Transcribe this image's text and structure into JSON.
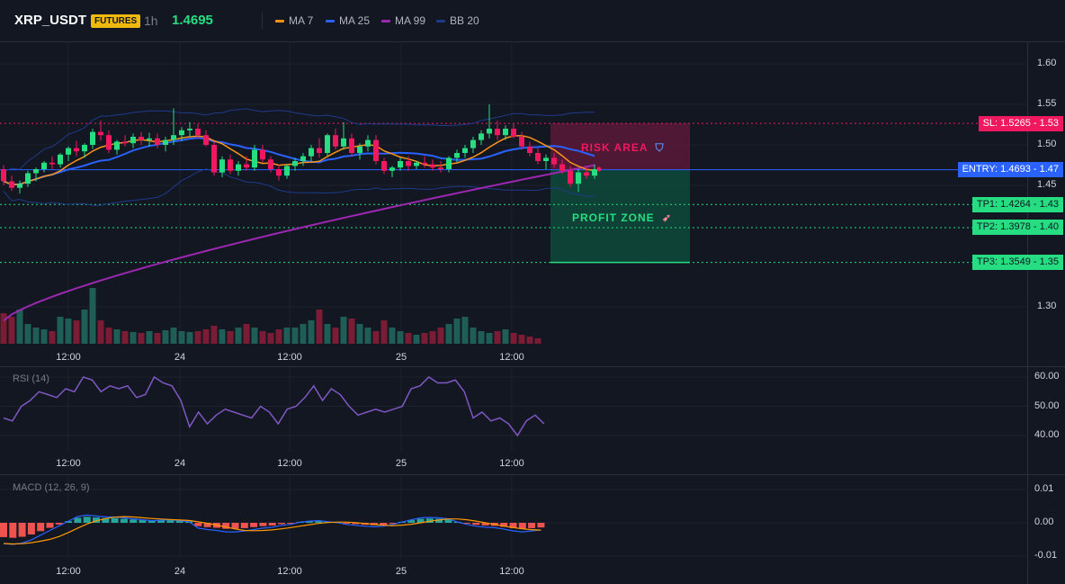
{
  "header": {
    "symbol": "XRP_USDT",
    "badge": "FUTURES",
    "interval": "1h",
    "price": "1.4695",
    "legend": [
      {
        "label": "MA 7",
        "color": "#f7931a"
      },
      {
        "label": "MA 25",
        "color": "#2962ff"
      },
      {
        "label": "MA 99",
        "color": "#9c27b0"
      },
      {
        "label": "BB 20",
        "color": "#1e3a8a"
      }
    ]
  },
  "colors": {
    "up": "#26de81",
    "down": "#f0185f",
    "vol_up": "#1f5e57",
    "vol_down": "#7a1c34",
    "macd_up": "#26a69a",
    "macd_down": "#ef5350",
    "macd_line": "#2962ff",
    "signal_line": "#ff9800",
    "rsi_line": "#7e57c2",
    "entry": "#2962ff",
    "sl": "#f0185f",
    "tp": "#26de81"
  },
  "zones": {
    "risk_label": "RISK AREA",
    "profit_label": "PROFIT ZONE"
  },
  "panes": {
    "rsi_title": "RSI (14)",
    "macd_title": "MACD (12, 26, 9)"
  },
  "chart_data": {
    "type": "candlestick",
    "price_axis_ticks": [
      "1.60",
      "1.55",
      "1.50",
      "1.45",
      "1.30"
    ],
    "rsi_axis_ticks": [
      "60.00",
      "50.00",
      "40.00"
    ],
    "macd_axis_ticks": [
      "0.01",
      "0.00",
      "-0.01"
    ],
    "time_labels": [
      "12:00",
      "24",
      "12:00",
      "25",
      "12:00"
    ],
    "levels": [
      {
        "name": "SL",
        "value": 1.5265,
        "label": "SL: 1.5265",
        "short": "1.53",
        "kind": "sl"
      },
      {
        "name": "ENTRY",
        "value": 1.4693,
        "label": "ENTRY: 1.4693",
        "short": "1.47",
        "kind": "entry"
      },
      {
        "name": "TP1",
        "value": 1.4264,
        "label": "TP1: 1.4264",
        "short": "1.43",
        "kind": "tp"
      },
      {
        "name": "TP2",
        "value": 1.3978,
        "label": "TP2: 1.3978",
        "short": "1.40",
        "kind": "tp"
      },
      {
        "name": "TP3",
        "value": 1.3549,
        "label": "TP3: 1.3549",
        "short": "1.35",
        "kind": "tp"
      }
    ],
    "candles": [
      [
        1.47,
        1.475,
        1.45,
        1.455
      ],
      [
        1.455,
        1.462,
        1.443,
        1.447
      ],
      [
        1.447,
        1.456,
        1.44,
        1.452
      ],
      [
        1.452,
        1.468,
        1.448,
        1.465
      ],
      [
        1.465,
        1.472,
        1.455,
        1.47
      ],
      [
        1.47,
        1.48,
        1.466,
        1.478
      ],
      [
        1.478,
        1.486,
        1.47,
        1.476
      ],
      [
        1.476,
        1.49,
        1.472,
        1.488
      ],
      [
        1.488,
        1.498,
        1.48,
        1.496
      ],
      [
        1.496,
        1.505,
        1.486,
        1.492
      ],
      [
        1.492,
        1.502,
        1.484,
        1.5
      ],
      [
        1.5,
        1.52,
        1.495,
        1.516
      ],
      [
        1.516,
        1.53,
        1.505,
        1.512
      ],
      [
        1.512,
        1.518,
        1.49,
        1.494
      ],
      [
        1.494,
        1.506,
        1.488,
        1.504
      ],
      [
        1.504,
        1.512,
        1.498,
        1.502
      ],
      [
        1.502,
        1.514,
        1.496,
        1.51
      ],
      [
        1.51,
        1.516,
        1.5,
        1.506
      ],
      [
        1.506,
        1.515,
        1.498,
        1.508
      ],
      [
        1.508,
        1.514,
        1.496,
        1.5
      ],
      [
        1.5,
        1.51,
        1.492,
        1.506
      ],
      [
        1.506,
        1.545,
        1.5,
        1.512
      ],
      [
        1.512,
        1.522,
        1.505,
        1.518
      ],
      [
        1.518,
        1.528,
        1.51,
        1.52
      ],
      [
        1.52,
        1.526,
        1.508,
        1.512
      ],
      [
        1.512,
        1.518,
        1.498,
        1.5
      ],
      [
        1.5,
        1.504,
        1.462,
        1.466
      ],
      [
        1.466,
        1.486,
        1.46,
        1.482
      ],
      [
        1.482,
        1.488,
        1.464,
        1.468
      ],
      [
        1.468,
        1.48,
        1.462,
        1.476
      ],
      [
        1.476,
        1.486,
        1.468,
        1.472
      ],
      [
        1.472,
        1.5,
        1.468,
        1.494
      ],
      [
        1.494,
        1.5,
        1.478,
        1.482
      ],
      [
        1.482,
        1.486,
        1.466,
        1.47
      ],
      [
        1.47,
        1.476,
        1.456,
        1.462
      ],
      [
        1.462,
        1.476,
        1.458,
        1.474
      ],
      [
        1.474,
        1.484,
        1.468,
        1.48
      ],
      [
        1.48,
        1.49,
        1.474,
        1.486
      ],
      [
        1.486,
        1.5,
        1.48,
        1.496
      ],
      [
        1.496,
        1.508,
        1.484,
        1.49
      ],
      [
        1.49,
        1.514,
        1.486,
        1.512
      ],
      [
        1.512,
        1.52,
        1.494,
        1.498
      ],
      [
        1.498,
        1.528,
        1.494,
        1.508
      ],
      [
        1.508,
        1.514,
        1.486,
        1.49
      ],
      [
        1.49,
        1.502,
        1.482,
        1.498
      ],
      [
        1.498,
        1.512,
        1.492,
        1.506
      ],
      [
        1.506,
        1.512,
        1.476,
        1.48
      ],
      [
        1.48,
        1.484,
        1.464,
        1.468
      ],
      [
        1.468,
        1.474,
        1.46,
        1.472
      ],
      [
        1.472,
        1.484,
        1.468,
        1.48
      ],
      [
        1.48,
        1.486,
        1.468,
        1.474
      ],
      [
        1.474,
        1.48,
        1.47,
        1.478
      ],
      [
        1.478,
        1.486,
        1.472,
        1.476
      ],
      [
        1.476,
        1.482,
        1.468,
        1.472
      ],
      [
        1.472,
        1.48,
        1.466,
        1.47
      ],
      [
        1.47,
        1.486,
        1.466,
        1.484
      ],
      [
        1.484,
        1.494,
        1.478,
        1.49
      ],
      [
        1.49,
        1.5,
        1.484,
        1.496
      ],
      [
        1.496,
        1.51,
        1.49,
        1.506
      ],
      [
        1.506,
        1.518,
        1.5,
        1.514
      ],
      [
        1.514,
        1.55,
        1.508,
        1.52
      ],
      [
        1.52,
        1.53,
        1.506,
        1.512
      ],
      [
        1.512,
        1.524,
        1.506,
        1.52
      ],
      [
        1.52,
        1.526,
        1.508,
        1.51
      ],
      [
        1.51,
        1.516,
        1.494,
        1.498
      ],
      [
        1.498,
        1.504,
        1.486,
        1.49
      ],
      [
        1.49,
        1.496,
        1.476,
        1.48
      ],
      [
        1.48,
        1.488,
        1.47,
        1.484
      ],
      [
        1.484,
        1.49,
        1.472,
        1.476
      ],
      [
        1.476,
        1.482,
        1.464,
        1.468
      ],
      [
        1.468,
        1.474,
        1.448,
        1.452
      ],
      [
        1.452,
        1.47,
        1.442,
        1.466
      ],
      [
        1.466,
        1.474,
        1.458,
        1.462
      ],
      [
        1.462,
        1.476,
        1.458,
        1.47
      ]
    ],
    "volume": [
      34,
      30,
      38,
      22,
      18,
      16,
      14,
      30,
      28,
      26,
      38,
      62,
      26,
      18,
      16,
      14,
      13,
      12,
      14,
      12,
      15,
      18,
      14,
      13,
      14,
      16,
      20,
      16,
      14,
      18,
      22,
      18,
      14,
      12,
      16,
      18,
      18,
      22,
      26,
      38,
      22,
      18,
      30,
      28,
      22,
      18,
      14,
      26,
      18,
      14,
      12,
      10,
      12,
      14,
      18,
      22,
      28,
      30,
      18,
      14,
      12,
      14,
      16,
      12,
      10,
      8,
      6
    ],
    "rsi": [
      46,
      45,
      50,
      52,
      55,
      54,
      53,
      56,
      55,
      60,
      59,
      55,
      57,
      56,
      57,
      53,
      54,
      60,
      58,
      57,
      52,
      43,
      48,
      44,
      47,
      49,
      48,
      47,
      46,
      50,
      48,
      44,
      49,
      50,
      53,
      57,
      52,
      56,
      54,
      50,
      47,
      48,
      49,
      48,
      49,
      50,
      56,
      57,
      60,
      58,
      58,
      59,
      55,
      46,
      48,
      45,
      46,
      44,
      40,
      45,
      47,
      44
    ],
    "macd": [
      -0.0043,
      -0.0045,
      -0.0042,
      -0.0035,
      -0.0025,
      -0.0015,
      -0.0005,
      0.0005,
      0.0015,
      0.0018,
      0.0016,
      0.0014,
      0.0014,
      0.0012,
      0.001,
      0.0008,
      0.0006,
      0.0007,
      0.0008,
      0.0006,
      0.0004,
      -0.001,
      -0.0013,
      -0.0015,
      -0.0018,
      -0.0018,
      -0.0016,
      -0.0013,
      -0.001,
      -0.0008,
      -0.0004,
      -0.0002,
      0.0003,
      0.0005,
      0.0006,
      0.0004,
      0.0002,
      -0.0002,
      -0.0004,
      -0.0006,
      -0.0007,
      -0.0006,
      -0.0002,
      0.0003,
      0.0008,
      0.0012,
      0.0013,
      0.0012,
      0.001,
      0.0003,
      -0.0002,
      -0.0006,
      -0.0008,
      -0.0009,
      -0.0012,
      -0.0016,
      -0.0018,
      -0.0016,
      -0.0014
    ]
  }
}
